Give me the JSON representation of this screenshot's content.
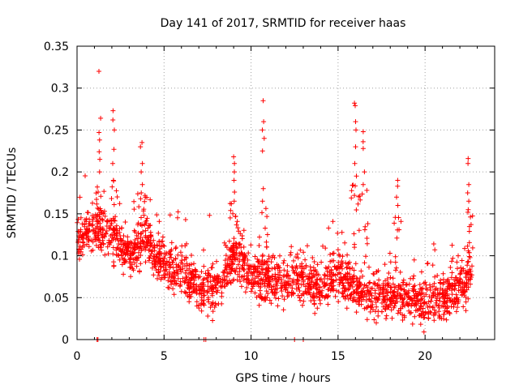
{
  "chart_data": {
    "type": "scatter",
    "title": "Day 141 of 2017, SRMTID for receiver haas",
    "xlabel": "GPS time / hours",
    "ylabel": "SRMTID / TECUs",
    "xlim": [
      0,
      24
    ],
    "ylim": [
      0,
      0.35
    ],
    "xticks": [
      0,
      5,
      10,
      15,
      20
    ],
    "yticks": [
      0,
      0.05,
      0.1,
      0.15,
      0.2,
      0.25,
      0.3,
      0.35
    ],
    "xtick_labels": [
      "0",
      "5",
      "10",
      "15",
      "20"
    ],
    "ytick_labels": [
      "0",
      "0.05",
      "0.1",
      "0.15",
      "0.2",
      "0.25",
      "0.3",
      "0.35"
    ],
    "grid": true,
    "marker": "+",
    "series_color": "#ff0000",
    "baseline": [
      0.0,
      0.06
    ],
    "data_summary": {
      "points_per_hour": 90,
      "x_range": [
        0,
        22.7
      ],
      "envelope": [
        [
          0,
          0.12
        ],
        [
          1,
          0.13
        ],
        [
          2,
          0.12
        ],
        [
          3,
          0.1
        ],
        [
          4,
          0.12
        ],
        [
          5,
          0.09
        ],
        [
          6,
          0.08
        ],
        [
          7,
          0.06
        ],
        [
          8,
          0.06
        ],
        [
          9,
          0.1
        ],
        [
          10,
          0.08
        ],
        [
          11,
          0.07
        ],
        [
          12,
          0.07
        ],
        [
          13,
          0.07
        ],
        [
          14,
          0.06
        ],
        [
          15,
          0.08
        ],
        [
          16,
          0.06
        ],
        [
          17,
          0.05
        ],
        [
          18,
          0.05
        ],
        [
          19,
          0.05
        ],
        [
          20,
          0.045
        ],
        [
          21,
          0.05
        ],
        [
          22,
          0.06
        ],
        [
          22.7,
          0.07
        ]
      ],
      "spread": 0.025
    },
    "bursts": [
      {
        "x": 1.3,
        "values": [
          0.32,
          0.264,
          0.247,
          0.238,
          0.224,
          0.215,
          0.2
        ]
      },
      {
        "x": 2.1,
        "values": [
          0.273,
          0.262,
          0.25,
          0.227,
          0.21,
          0.19
        ]
      },
      {
        "x": 3.7,
        "values": [
          0.235,
          0.23,
          0.21,
          0.2,
          0.185,
          0.175
        ]
      },
      {
        "x": 9.0,
        "values": [
          0.218,
          0.21,
          0.2,
          0.19,
          0.176,
          0.165
        ]
      },
      {
        "x": 10.7,
        "values": [
          0.285,
          0.26,
          0.25,
          0.24,
          0.225,
          0.18,
          0.165
        ]
      },
      {
        "x": 16.0,
        "values": [
          0.282,
          0.279,
          0.26,
          0.25,
          0.23,
          0.21,
          0.195
        ]
      },
      {
        "x": 16.5,
        "values": [
          0.248,
          0.236,
          0.228,
          0.2,
          0.185
        ]
      },
      {
        "x": 18.4,
        "values": [
          0.19,
          0.183,
          0.17,
          0.16
        ]
      },
      {
        "x": 22.5,
        "values": [
          0.216,
          0.21,
          0.185,
          0.175,
          0.165,
          0.155
        ]
      }
    ],
    "zero_points_x": [
      1.15,
      1.2,
      7.3,
      7.4,
      12.5,
      13.0
    ]
  }
}
